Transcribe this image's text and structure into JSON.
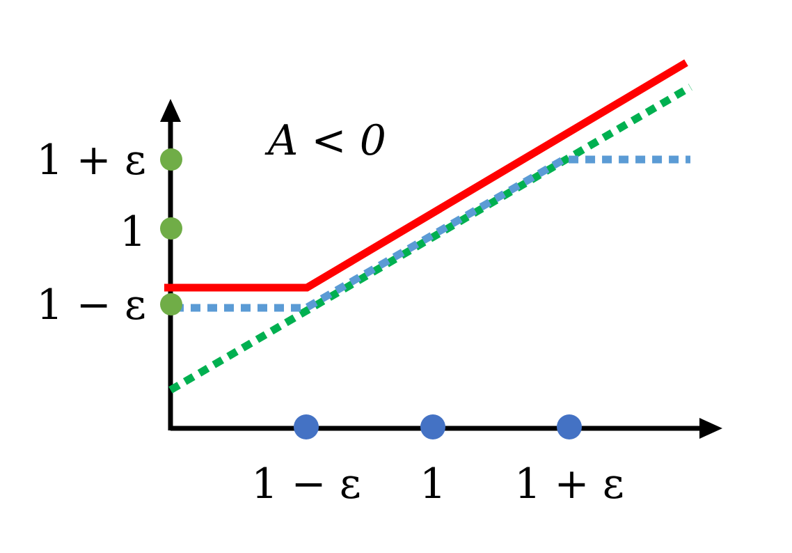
{
  "annotation": "A < 0",
  "x_ticks": [
    "1 − ε",
    "1",
    "1 + ε"
  ],
  "y_ticks": [
    "1 + ε",
    "1",
    "1 − ε"
  ],
  "colors": {
    "axes": "#000000",
    "red_line": "#ff0000",
    "blue_dotted": "#5b9bd5",
    "green_dotted": "#00b050",
    "x_markers": "#4472c4",
    "y_markers": "#70ad47"
  }
}
